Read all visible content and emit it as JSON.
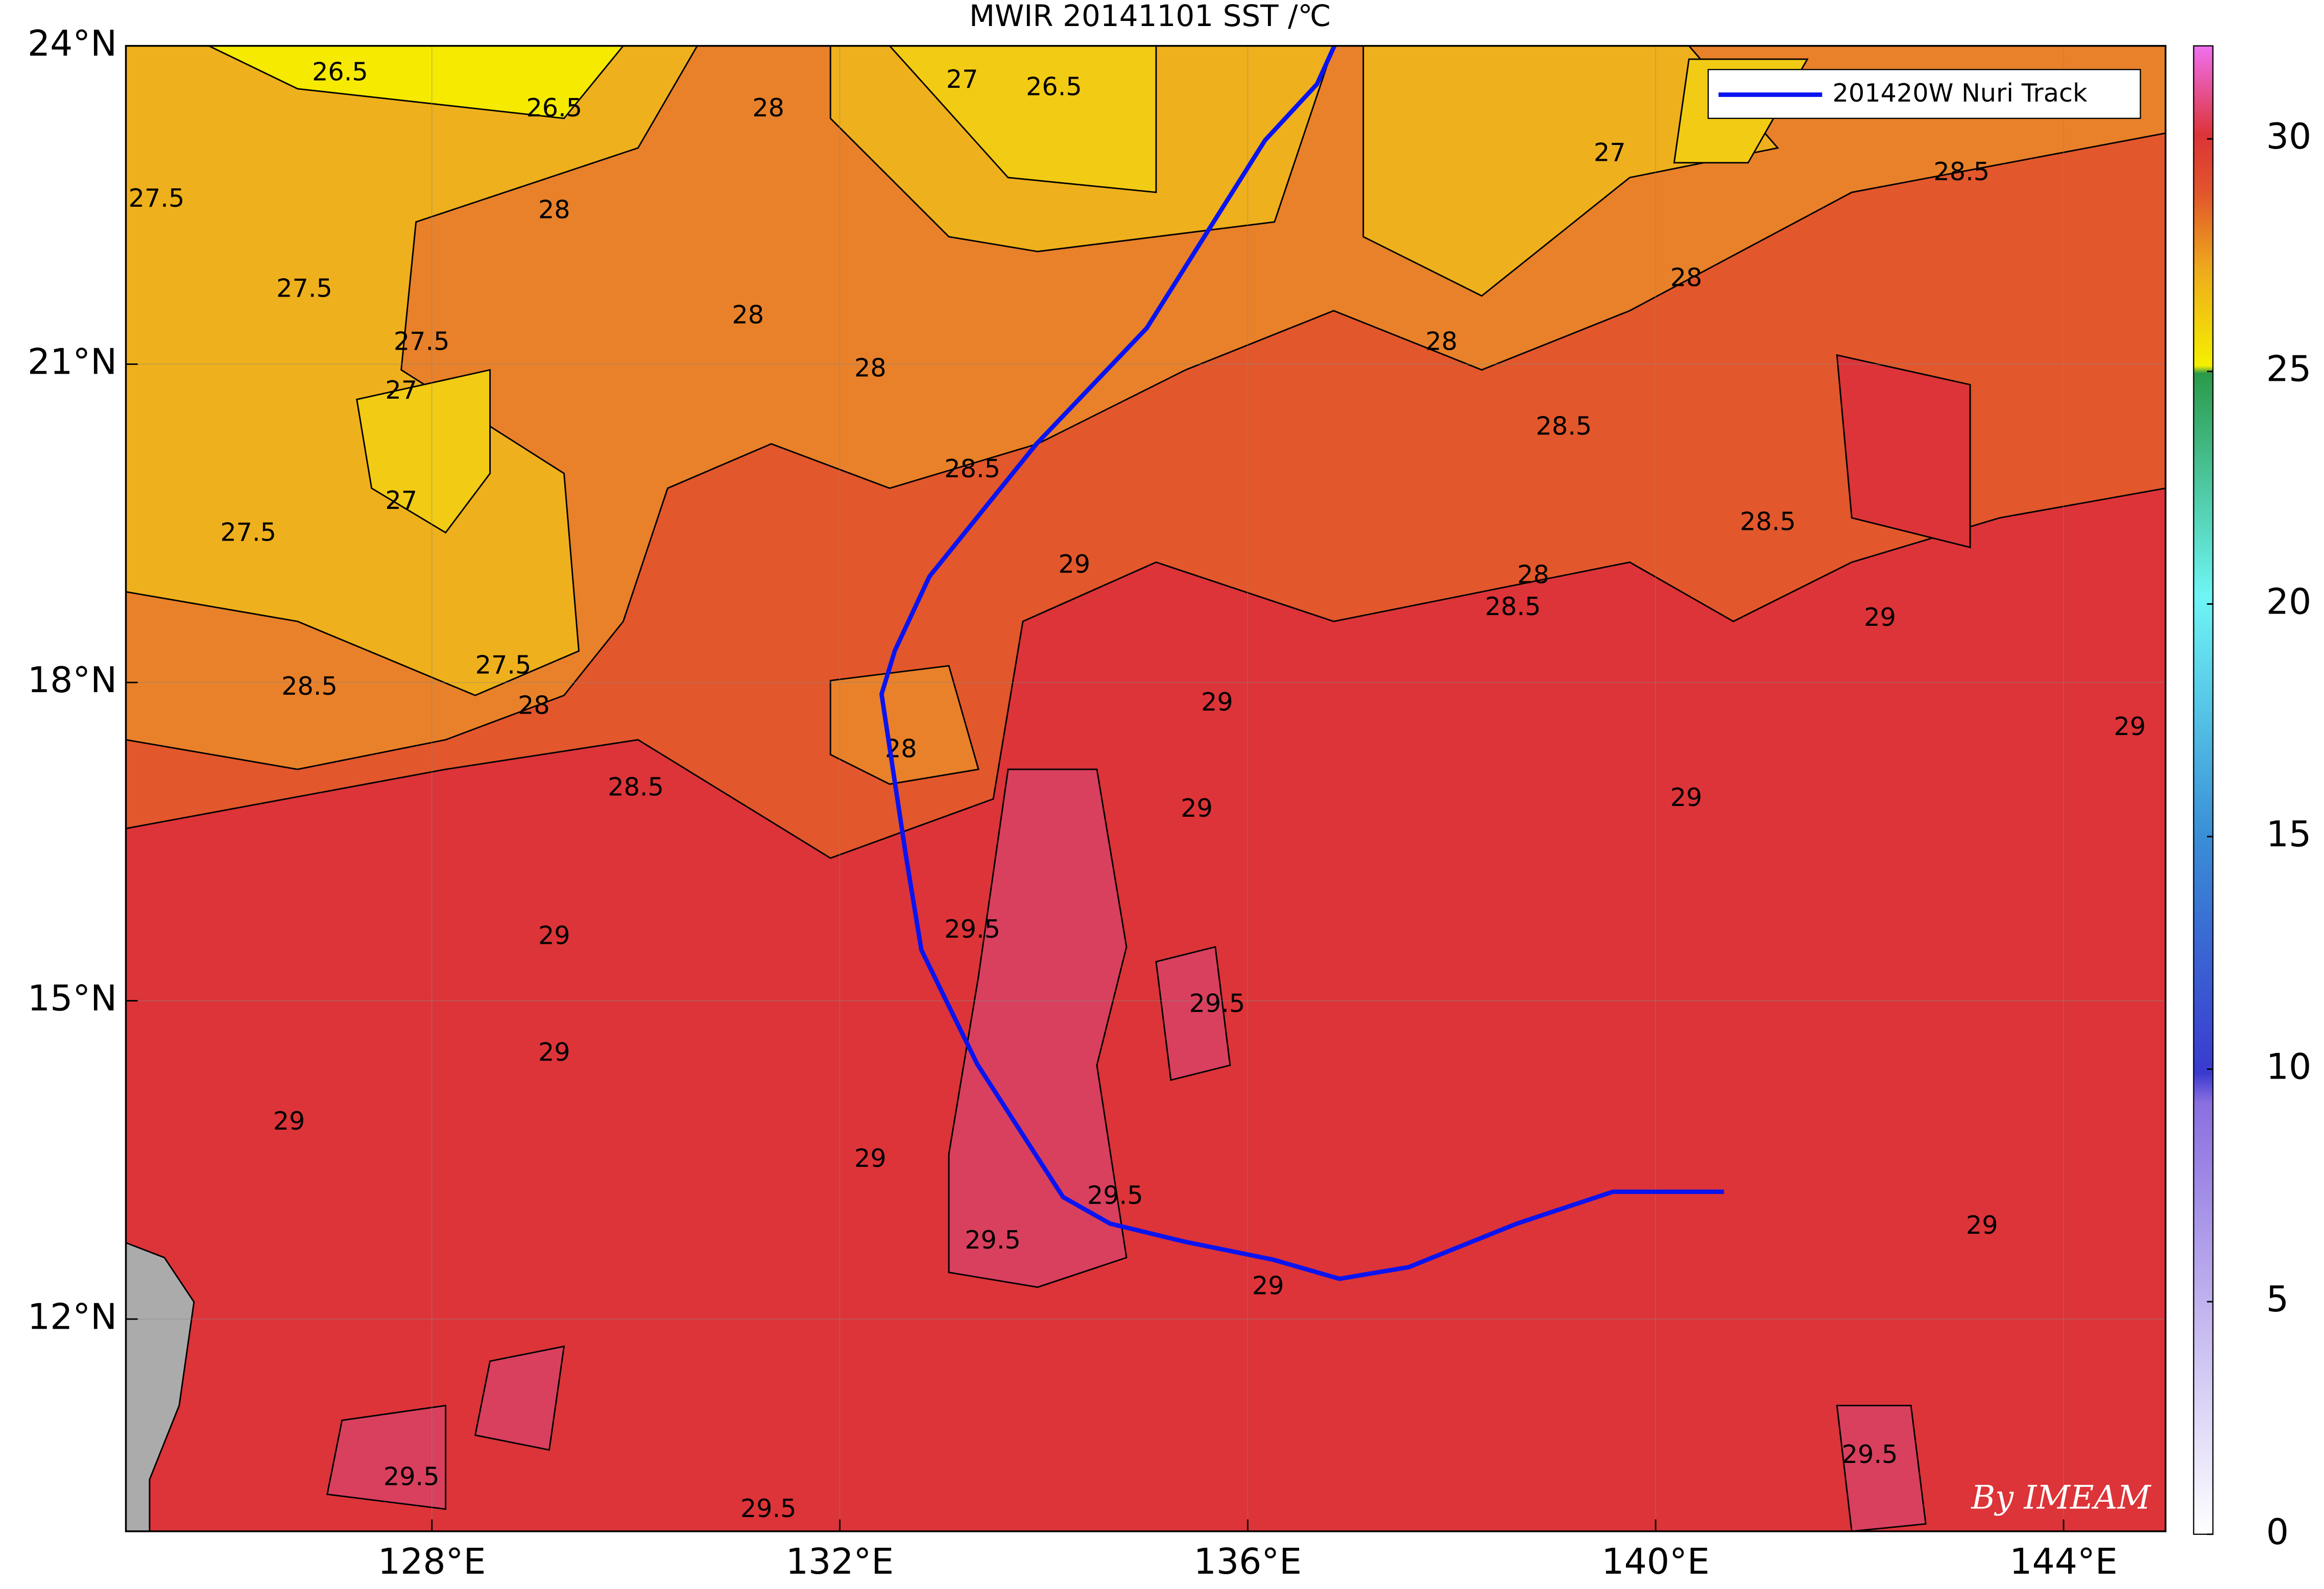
{
  "chart_data": {
    "type": "map",
    "title": "MWIR 20141101 SST /℃",
    "credit": "By IMEAM",
    "xlim": [
      125,
      145
    ],
    "ylim": [
      10,
      24
    ],
    "xticks": [
      {
        "value": 128,
        "label": "128°E"
      },
      {
        "value": 132,
        "label": "132°E"
      },
      {
        "value": 136,
        "label": "136°E"
      },
      {
        "value": 140,
        "label": "140°E"
      },
      {
        "value": 144,
        "label": "144°E"
      }
    ],
    "yticks": [
      {
        "value": 12,
        "label": "12°N"
      },
      {
        "value": 15,
        "label": "15°N"
      },
      {
        "value": 18,
        "label": "18°N"
      },
      {
        "value": 21,
        "label": "21°N"
      },
      {
        "value": 24,
        "label": "24°N"
      }
    ],
    "grid": true,
    "clim": [
      0,
      32
    ],
    "cticks": [
      0,
      5,
      10,
      15,
      20,
      25,
      30
    ],
    "legend": "upper right",
    "series": [
      {
        "name": "201420W Nuri Track",
        "color": "#0a14f0",
        "x": [
          136.85,
          136.68,
          136.17,
          135.01,
          133.93,
          132.88,
          132.54,
          132.41,
          132.65,
          132.8,
          133.35,
          133.86,
          134.19,
          134.65,
          135.38,
          136.25,
          136.9,
          137.58,
          138.64,
          139.58,
          140.67
        ],
        "y": [
          24,
          23.64,
          23.11,
          21.34,
          20.25,
          19.0,
          18.3,
          17.89,
          16.36,
          15.48,
          14.4,
          13.64,
          13.15,
          12.9,
          12.73,
          12.56,
          12.38,
          12.49,
          12.9,
          13.2,
          13.2
        ]
      }
    ],
    "contour_labels": [
      {
        "value": 26.5,
        "lon": 127.1,
        "lat": 23.74
      },
      {
        "value": 26.5,
        "lon": 129.2,
        "lat": 23.4
      },
      {
        "value": 26.5,
        "lon": 134.1,
        "lat": 23.6
      },
      {
        "value": 27,
        "lon": 133.2,
        "lat": 23.67
      },
      {
        "value": 27,
        "lon": 139.55,
        "lat": 22.98
      },
      {
        "value": 27.5,
        "lon": 125.3,
        "lat": 22.55
      },
      {
        "value": 27.5,
        "lon": 126.75,
        "lat": 21.7
      },
      {
        "value": 27.5,
        "lon": 127.9,
        "lat": 21.2
      },
      {
        "value": 27,
        "lon": 127.7,
        "lat": 20.74
      },
      {
        "value": 27,
        "lon": 127.7,
        "lat": 19.7
      },
      {
        "value": 27.5,
        "lon": 126.2,
        "lat": 19.4
      },
      {
        "value": 27.5,
        "lon": 128.7,
        "lat": 18.15
      },
      {
        "value": 28,
        "lon": 131.3,
        "lat": 23.4
      },
      {
        "value": 28,
        "lon": 129.2,
        "lat": 22.44
      },
      {
        "value": 28,
        "lon": 131.1,
        "lat": 21.45
      },
      {
        "value": 28,
        "lon": 132.3,
        "lat": 20.95
      },
      {
        "value": 28,
        "lon": 129.0,
        "lat": 17.77
      },
      {
        "value": 28,
        "lon": 132.6,
        "lat": 17.36
      },
      {
        "value": 28,
        "lon": 140.3,
        "lat": 21.8
      },
      {
        "value": 28,
        "lon": 137.9,
        "lat": 21.2
      },
      {
        "value": 28,
        "lon": 138.8,
        "lat": 19.0
      },
      {
        "value": 28.5,
        "lon": 133.3,
        "lat": 20.0
      },
      {
        "value": 28.5,
        "lon": 139.1,
        "lat": 20.4
      },
      {
        "value": 28.5,
        "lon": 130.0,
        "lat": 17.0
      },
      {
        "value": 28.5,
        "lon": 126.8,
        "lat": 17.95
      },
      {
        "value": 28.5,
        "lon": 141.1,
        "lat": 19.5
      },
      {
        "value": 28.5,
        "lon": 143.0,
        "lat": 22.8
      },
      {
        "value": 28.5,
        "lon": 138.6,
        "lat": 18.7
      },
      {
        "value": 29,
        "lon": 134.3,
        "lat": 19.1
      },
      {
        "value": 29,
        "lon": 135.7,
        "lat": 17.8
      },
      {
        "value": 29,
        "lon": 135.5,
        "lat": 16.8
      },
      {
        "value": 29,
        "lon": 140.3,
        "lat": 16.9
      },
      {
        "value": 29,
        "lon": 129.2,
        "lat": 15.6
      },
      {
        "value": 29,
        "lon": 126.6,
        "lat": 13.85
      },
      {
        "value": 29,
        "lon": 129.2,
        "lat": 14.5
      },
      {
        "value": 29,
        "lon": 132.3,
        "lat": 13.5
      },
      {
        "value": 29,
        "lon": 136.2,
        "lat": 12.3
      },
      {
        "value": 29,
        "lon": 143.2,
        "lat": 12.87
      },
      {
        "value": 29,
        "lon": 142.2,
        "lat": 18.6
      },
      {
        "value": 29,
        "lon": 144.65,
        "lat": 17.57
      },
      {
        "value": 29.5,
        "lon": 133.5,
        "lat": 12.73
      },
      {
        "value": 29.5,
        "lon": 134.7,
        "lat": 13.15
      },
      {
        "value": 29.5,
        "lon": 127.8,
        "lat": 10.5
      },
      {
        "value": 29.5,
        "lon": 131.3,
        "lat": 10.2
      },
      {
        "value": 29.5,
        "lon": 133.3,
        "lat": 15.66
      },
      {
        "value": 29.5,
        "lon": 142.1,
        "lat": 10.71
      },
      {
        "value": 29.5,
        "lon": 135.7,
        "lat": 14.96
      }
    ]
  }
}
